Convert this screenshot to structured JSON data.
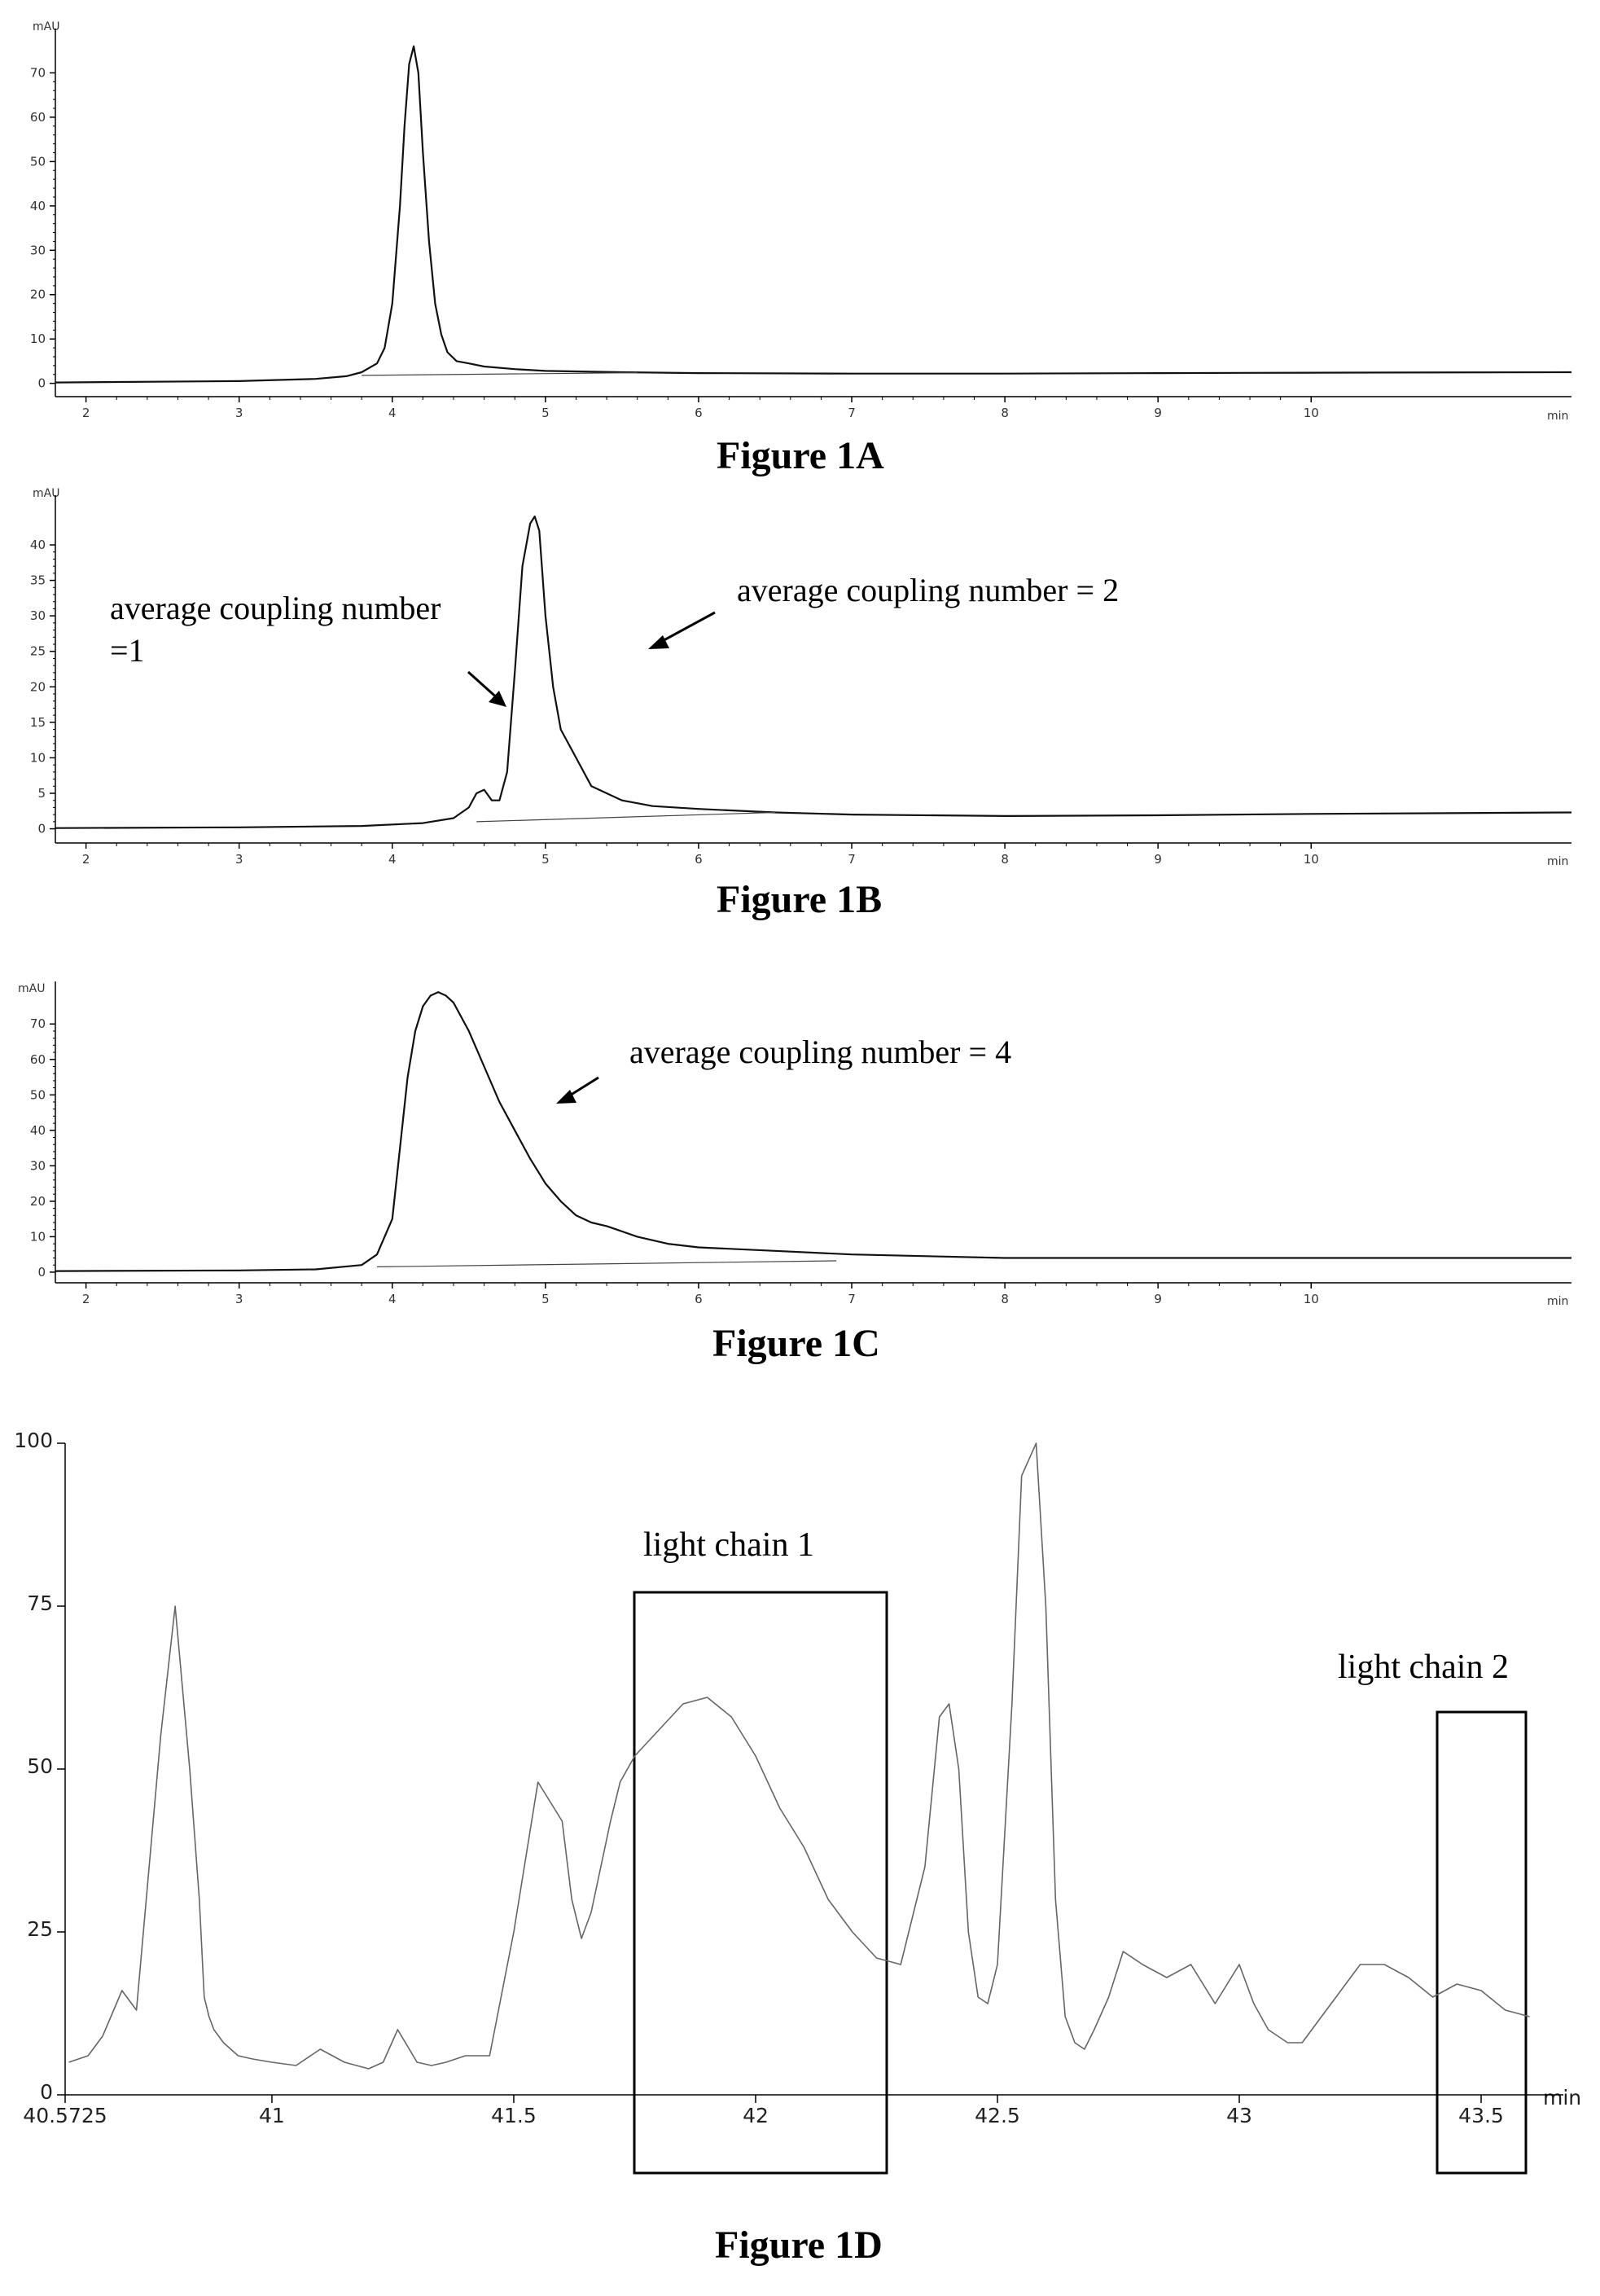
{
  "chart_data": [
    {
      "type": "line",
      "caption": "Figure    1A",
      "yunit": "mAU",
      "xunit": "min",
      "xlim": [
        1.8,
        11.7
      ],
      "ylim": [
        -3,
        80
      ],
      "xticks": [
        "2",
        "3",
        "4",
        "5",
        "6",
        "7",
        "8",
        "9",
        "10"
      ],
      "xtick_values": [
        2,
        3,
        4,
        5,
        6,
        7,
        8,
        9,
        10
      ],
      "yticks": [
        "0",
        "10",
        "20",
        "30",
        "40",
        "50",
        "60",
        "70"
      ],
      "ytick_values": [
        0,
        10,
        20,
        30,
        40,
        50,
        60,
        70
      ],
      "series": [
        {
          "x": [
            1.8,
            3.0,
            3.5,
            3.7,
            3.8,
            3.9,
            3.95,
            4.0,
            4.05,
            4.08,
            4.11,
            4.14,
            4.17,
            4.2,
            4.24,
            4.28,
            4.32,
            4.36,
            4.42,
            4.5,
            4.6,
            4.8,
            5.0,
            5.5,
            6.0,
            7.0,
            8.0,
            9.0,
            10.0,
            11.7
          ],
          "y": [
            0.2,
            0.5,
            1.0,
            1.6,
            2.5,
            4.5,
            8,
            18,
            40,
            58,
            72,
            76,
            70,
            52,
            32,
            18,
            11,
            7,
            5,
            4.5,
            3.8,
            3.2,
            2.8,
            2.5,
            2.3,
            2.2,
            2.2,
            2.3,
            2.4,
            2.5
          ]
        },
        {
          "x": [
            3.8,
            5.6
          ],
          "y": [
            1.8,
            2.4
          ]
        }
      ],
      "annotations": []
    },
    {
      "type": "line",
      "caption": "Figure    1B",
      "yunit": "mAU",
      "xunit": "min",
      "xlim": [
        1.8,
        11.7
      ],
      "ylim": [
        -2,
        47
      ],
      "xticks": [
        "2",
        "3",
        "4",
        "5",
        "6",
        "7",
        "8",
        "9",
        "10"
      ],
      "xtick_values": [
        2,
        3,
        4,
        5,
        6,
        7,
        8,
        9,
        10
      ],
      "yticks": [
        "0",
        "5",
        "10",
        "15",
        "20",
        "25",
        "30",
        "35",
        "40"
      ],
      "ytick_values": [
        0,
        5,
        10,
        15,
        20,
        25,
        30,
        35,
        40
      ],
      "series": [
        {
          "x": [
            1.8,
            3.0,
            3.8,
            4.2,
            4.4,
            4.5,
            4.55,
            4.6,
            4.65,
            4.7,
            4.75,
            4.8,
            4.85,
            4.9,
            4.93,
            4.96,
            5.0,
            5.05,
            5.1,
            5.2,
            5.3,
            5.5,
            5.7,
            6.0,
            6.5,
            7.0,
            8.0,
            9.0,
            10.0,
            11.7
          ],
          "y": [
            0.1,
            0.2,
            0.4,
            0.8,
            1.5,
            3,
            5,
            5.5,
            4,
            4,
            8,
            22,
            37,
            43,
            44,
            42,
            30,
            20,
            14,
            10,
            6,
            4,
            3.2,
            2.8,
            2.3,
            2,
            1.8,
            1.9,
            2.1,
            2.3
          ]
        },
        {
          "x": [
            4.55,
            6.5
          ],
          "y": [
            1.0,
            2.3
          ]
        }
      ],
      "annotations": [
        {
          "text": "average coupling number"
        },
        {
          "text": "=1"
        },
        {
          "text": "average coupling number = 2"
        }
      ]
    },
    {
      "type": "line",
      "caption": "Figure    1C",
      "yunit": "mAU",
      "xunit": "min",
      "xlim": [
        1.8,
        11.7
      ],
      "ylim": [
        -3,
        82
      ],
      "xticks": [
        "2",
        "3",
        "4",
        "5",
        "6",
        "7",
        "8",
        "9",
        "10"
      ],
      "xtick_values": [
        2,
        3,
        4,
        5,
        6,
        7,
        8,
        9,
        10
      ],
      "yticks": [
        "0",
        "10",
        "20",
        "30",
        "40",
        "50",
        "60",
        "70"
      ],
      "ytick_values": [
        0,
        10,
        20,
        30,
        40,
        50,
        60,
        70
      ],
      "series": [
        {
          "x": [
            1.8,
            3.0,
            3.5,
            3.8,
            3.9,
            4.0,
            4.05,
            4.1,
            4.15,
            4.2,
            4.25,
            4.3,
            4.35,
            4.4,
            4.5,
            4.6,
            4.7,
            4.8,
            4.9,
            5.0,
            5.1,
            5.2,
            5.3,
            5.4,
            5.6,
            5.8,
            6.0,
            6.5,
            7.0,
            8.0,
            9.0,
            10.0,
            11.7
          ],
          "y": [
            0.3,
            0.5,
            0.8,
            2,
            5,
            15,
            35,
            55,
            68,
            75,
            78,
            79,
            78,
            76,
            68,
            58,
            48,
            40,
            32,
            25,
            20,
            16,
            14,
            13,
            10,
            8,
            7,
            6,
            5,
            4,
            4,
            4,
            4
          ]
        },
        {
          "x": [
            3.9,
            6.9
          ],
          "y": [
            1.5,
            3.2
          ]
        }
      ],
      "annotations": [
        {
          "text": "average coupling number = 4"
        }
      ]
    },
    {
      "type": "line",
      "caption": "Figure    1D",
      "xunit": "min",
      "xlim": [
        40.5725,
        43.67
      ],
      "ylim": [
        0,
        100
      ],
      "xticks": [
        "40.5725",
        "41",
        "41.5",
        "42",
        "42.5",
        "43",
        "43.5"
      ],
      "xtick_values": [
        40.5725,
        41,
        41.5,
        42,
        42.5,
        43,
        43.5
      ],
      "yticks": [
        "0",
        "25",
        "50",
        "75",
        "100"
      ],
      "ytick_values": [
        0,
        25,
        50,
        75,
        100
      ],
      "series": [
        {
          "x": [
            40.58,
            40.62,
            40.65,
            40.69,
            40.72,
            40.77,
            40.8,
            40.83,
            40.85,
            40.86,
            40.87,
            40.88,
            40.9,
            40.93,
            40.96,
            41.0,
            41.05,
            41.1,
            41.15,
            41.2,
            41.23,
            41.26,
            41.3,
            41.33,
            41.36,
            41.4,
            41.45,
            41.5,
            41.55,
            41.6,
            41.62,
            41.64,
            41.66,
            41.68,
            41.7,
            41.72,
            41.75,
            41.8,
            41.85,
            41.9,
            41.95,
            42.0,
            42.05,
            42.1,
            42.15,
            42.2,
            42.25,
            42.3,
            42.35,
            42.38,
            42.4,
            42.42,
            42.44,
            42.46,
            42.48,
            42.5,
            42.53,
            42.55,
            42.58,
            42.6,
            42.62,
            42.64,
            42.66,
            42.68,
            42.7,
            42.73,
            42.76,
            42.8,
            42.85,
            42.9,
            42.95,
            43.0,
            43.03,
            43.06,
            43.1,
            43.13,
            43.16,
            43.2,
            43.25,
            43.3,
            43.35,
            43.4,
            43.45,
            43.5,
            43.55,
            43.6
          ],
          "y": [
            5,
            6,
            9,
            16,
            13,
            55,
            75,
            50,
            30,
            15,
            12,
            10,
            8,
            6,
            5.5,
            5,
            4.5,
            7,
            5,
            4,
            5,
            10,
            5,
            4.5,
            5,
            6,
            6,
            25,
            48,
            42,
            30,
            24,
            28,
            35,
            42,
            48,
            52,
            56,
            60,
            61,
            58,
            52,
            44,
            38,
            30,
            25,
            21,
            20,
            35,
            58,
            60,
            50,
            25,
            15,
            14,
            20,
            60,
            95,
            100,
            75,
            30,
            12,
            8,
            7,
            10,
            15,
            22,
            20,
            18,
            20,
            14,
            20,
            14,
            10,
            8,
            8,
            11,
            15,
            20,
            20,
            18,
            15,
            17,
            16,
            13,
            12
          ]
        }
      ],
      "annotations": [
        {
          "text": "light chain 1"
        },
        {
          "text": "light chain 2"
        }
      ]
    }
  ]
}
